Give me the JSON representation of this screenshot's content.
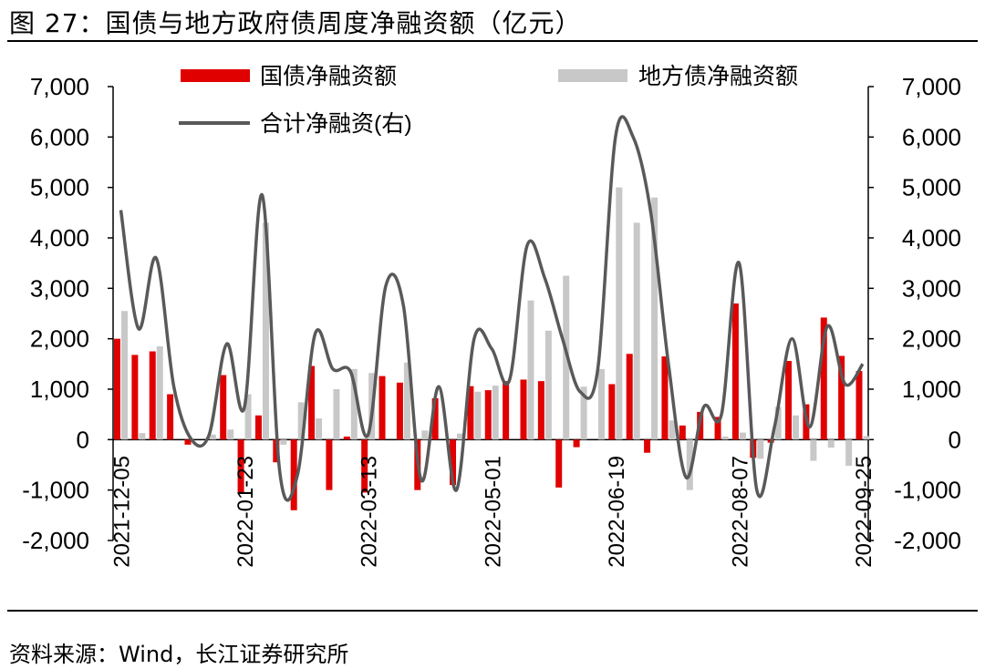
{
  "title": "图  27：国债与地方政府债周度净融资额（亿元）",
  "source": "资料来源：Wind，长江证券研究所",
  "chart_data": {
    "type": "bar",
    "title": "图  27：国债与地方政府债周度净融资额（亿元）",
    "y_left": {
      "min": -2000,
      "max": 7000,
      "ticks": [
        "-2,000",
        "-1,000",
        "0",
        "1,000",
        "2,000",
        "3,000",
        "4,000",
        "5,000",
        "6,000",
        "7,000"
      ]
    },
    "y_right": {
      "min": -2000,
      "max": 7000,
      "ticks": [
        "-2,000",
        "-1,000",
        "0",
        "1,000",
        "2,000",
        "3,000",
        "4,000",
        "5,000",
        "6,000",
        "7,000"
      ]
    },
    "x_tick_labels": [
      "2021-12-05",
      "2022-01-23",
      "2022-03-13",
      "2022-05-01",
      "2022-06-19",
      "2022-08-07",
      "2022-09-25"
    ],
    "x_tick_index": [
      0,
      7,
      14,
      21,
      28,
      35,
      42
    ],
    "legend": {
      "placement": "top",
      "items": [
        {
          "name": "国债净融资额",
          "kind": "bar",
          "color": "#e00000"
        },
        {
          "name": "地方债净融资额",
          "kind": "bar",
          "color": "#c8c8c8"
        },
        {
          "name": "合计净融资(右)",
          "kind": "line",
          "color": "#595959"
        }
      ]
    },
    "series": [
      {
        "name": "国债净融资额",
        "axis": "left",
        "color": "#e00000",
        "values": [
          2000,
          1680,
          1750,
          900,
          -100,
          0,
          1280,
          -1050,
          480,
          -450,
          -1400,
          1460,
          -1000,
          60,
          -1050,
          1260,
          1130,
          -1000,
          820,
          -900,
          1060,
          980,
          1160,
          1190,
          1160,
          -950,
          -150,
          0,
          1100,
          1700,
          -260,
          1650,
          280,
          550,
          450,
          2700,
          -360,
          -60,
          1560,
          700,
          2420,
          1660,
          1360
        ]
      },
      {
        "name": "地方债净融资额",
        "axis": "left",
        "color": "#c8c8c8",
        "values": [
          2550,
          130,
          1850,
          0,
          0,
          100,
          200,
          900,
          4300,
          -100,
          740,
          420,
          1000,
          1400,
          1320,
          0,
          1530,
          180,
          0,
          120,
          950,
          1070,
          0,
          2760,
          2160,
          3250,
          1050,
          1400,
          5000,
          4300,
          4800,
          380,
          -1000,
          0,
          60,
          140,
          -380,
          650,
          480,
          -420,
          -160,
          -520,
          70
        ]
      },
      {
        "name": "合计净融资(右)",
        "axis": "right",
        "color": "#595959",
        "values": [
          4550,
          2200,
          3600,
          1050,
          0,
          100,
          1900,
          650,
          4850,
          -650,
          -700,
          2100,
          1400,
          1350,
          100,
          3050,
          2650,
          -800,
          1050,
          -1000,
          2000,
          1800,
          1180,
          3850,
          3200,
          2000,
          950,
          1400,
          6000,
          6000,
          4500,
          1500,
          -750,
          650,
          500,
          3500,
          -1000,
          250,
          2000,
          250,
          2250,
          1100,
          1500
        ]
      }
    ]
  }
}
